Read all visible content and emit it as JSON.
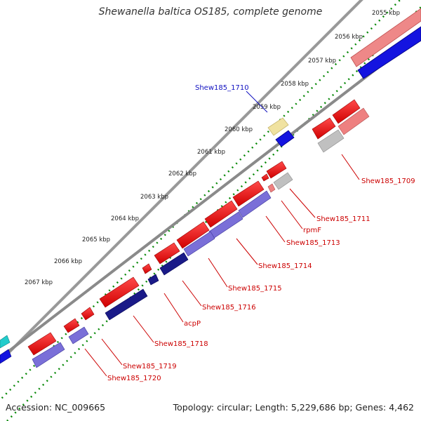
{
  "title": "Shewanella baltica OS185, complete genome",
  "footer": {
    "accession": "Accession: NC_009665",
    "summary": "Topology: circular; Length: 5,229,686 bp; Genes: 4,462"
  },
  "colors": {
    "forward_cds": "#e80000",
    "reverse_cds": "#1010d8",
    "forward_other": "#ee8080",
    "reverse_other": "#7a6fd8",
    "pseudo": "#c0c0c0",
    "rna": "#eee0a0",
    "tick": "#0a8a0a",
    "backbone": "#888888",
    "label_red": "#cc0000",
    "label_blue": "#1010c0"
  },
  "kbp_labels": [
    "2055 kbp",
    "2056 kbp",
    "2057 kbp",
    "2058 kbp",
    "2059 kbp",
    "2060 kbp",
    "2061 kbp",
    "2062 kbp",
    "2063 kbp",
    "2064 kbp",
    "2065 kbp",
    "2066 kbp",
    "2067 kbp"
  ],
  "gene_labels": [
    {
      "text": "Shew185_1710",
      "color": "blue"
    },
    {
      "text": "Shew185_1709",
      "color": "red"
    },
    {
      "text": "Shew185_1711",
      "color": "red"
    },
    {
      "text": "rpmF",
      "color": "red"
    },
    {
      "text": "Shew185_1713",
      "color": "red"
    },
    {
      "text": "Shew185_1714",
      "color": "red"
    },
    {
      "text": "Shew185_1715",
      "color": "red"
    },
    {
      "text": "Shew185_1716",
      "color": "red"
    },
    {
      "text": "acpP",
      "color": "red"
    },
    {
      "text": "Shew185_1718",
      "color": "red"
    },
    {
      "text": "Shew185_1719",
      "color": "red"
    },
    {
      "text": "Shew185_1720",
      "color": "red"
    }
  ]
}
